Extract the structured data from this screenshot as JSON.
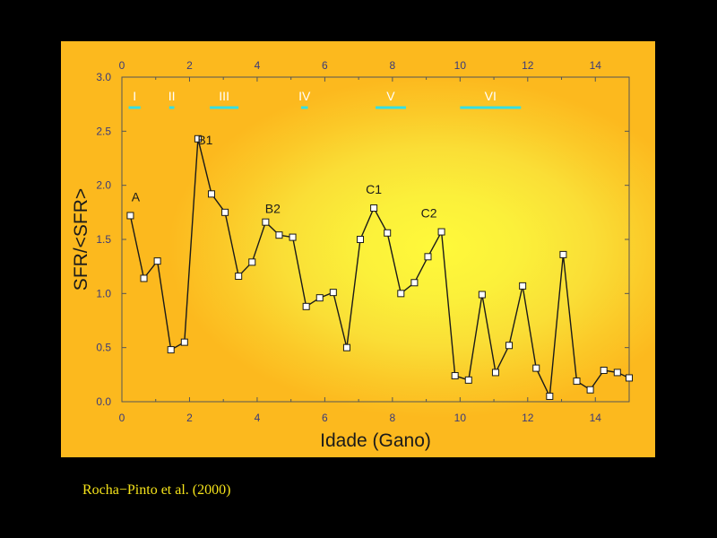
{
  "chart_data": {
    "type": "line",
    "xlabel": "Idade (Gano)",
    "ylabel": "SFR/<SFR>",
    "xlim": [
      0,
      15
    ],
    "ylim": [
      0,
      3
    ],
    "x_ticks": [
      0,
      2,
      4,
      6,
      8,
      10,
      12,
      14
    ],
    "y_ticks": [
      "0.0",
      "0.5",
      "1.0",
      "1.5",
      "2.0",
      "2.5",
      "3.0"
    ],
    "top_x_ticks": [
      0,
      2,
      4,
      6,
      8,
      10,
      12,
      14
    ],
    "series": [
      {
        "points": [
          [
            0.25,
            1.72
          ],
          [
            0.65,
            1.14
          ],
          [
            1.05,
            1.3
          ],
          [
            1.45,
            0.48
          ],
          [
            1.85,
            0.55
          ],
          [
            2.25,
            2.43
          ],
          [
            2.65,
            1.92
          ],
          [
            3.05,
            1.75
          ],
          [
            3.45,
            1.16
          ],
          [
            3.85,
            1.29
          ],
          [
            4.25,
            1.66
          ],
          [
            4.65,
            1.54
          ],
          [
            5.05,
            1.52
          ],
          [
            5.45,
            0.88
          ],
          [
            5.85,
            0.96
          ],
          [
            6.25,
            1.01
          ],
          [
            6.65,
            0.5
          ],
          [
            7.05,
            1.5
          ],
          [
            7.45,
            1.79
          ],
          [
            7.85,
            1.56
          ],
          [
            8.25,
            1.0
          ],
          [
            8.65,
            1.1
          ],
          [
            9.05,
            1.34
          ],
          [
            9.45,
            1.57
          ],
          [
            9.85,
            0.24
          ],
          [
            10.25,
            0.2
          ],
          [
            10.65,
            0.99
          ],
          [
            11.05,
            0.27
          ],
          [
            11.45,
            0.52
          ],
          [
            11.85,
            1.07
          ],
          [
            12.25,
            0.31
          ],
          [
            12.65,
            0.05
          ],
          [
            13.05,
            1.36
          ],
          [
            13.45,
            0.19
          ],
          [
            13.85,
            0.11
          ],
          [
            14.25,
            0.29
          ],
          [
            14.65,
            0.27
          ],
          [
            15.0,
            0.22
          ]
        ]
      }
    ],
    "annotations": [
      {
        "text": "A",
        "x": 0.25,
        "y": 1.72
      },
      {
        "text": "B1",
        "x": 2.25,
        "y": 2.43
      },
      {
        "text": "B2",
        "x": 4.25,
        "y": 1.66
      },
      {
        "text": "C1",
        "x": 7.45,
        "y": 1.79
      },
      {
        "text": "C2",
        "x": 9.45,
        "y": 1.57
      }
    ],
    "periods": [
      {
        "label": "I",
        "x_start": 0.2,
        "x_end": 0.55
      },
      {
        "label": "II",
        "x_start": 1.4,
        "x_end": 1.55
      },
      {
        "label": "III",
        "x_start": 2.6,
        "x_end": 3.45
      },
      {
        "label": "IV",
        "x_start": 5.3,
        "x_end": 5.5
      },
      {
        "label": "V",
        "x_start": 7.5,
        "x_end": 8.4
      },
      {
        "label": "VI",
        "x_start": 10.0,
        "x_end": 11.8
      }
    ],
    "colors": {
      "line": "#1a1a1a",
      "marker_fill": "#ffffff",
      "period_bar": "#33e0e6",
      "tick_label": "#3a3a7a"
    }
  },
  "caption": "Rocha−Pinto et al. (2000)"
}
